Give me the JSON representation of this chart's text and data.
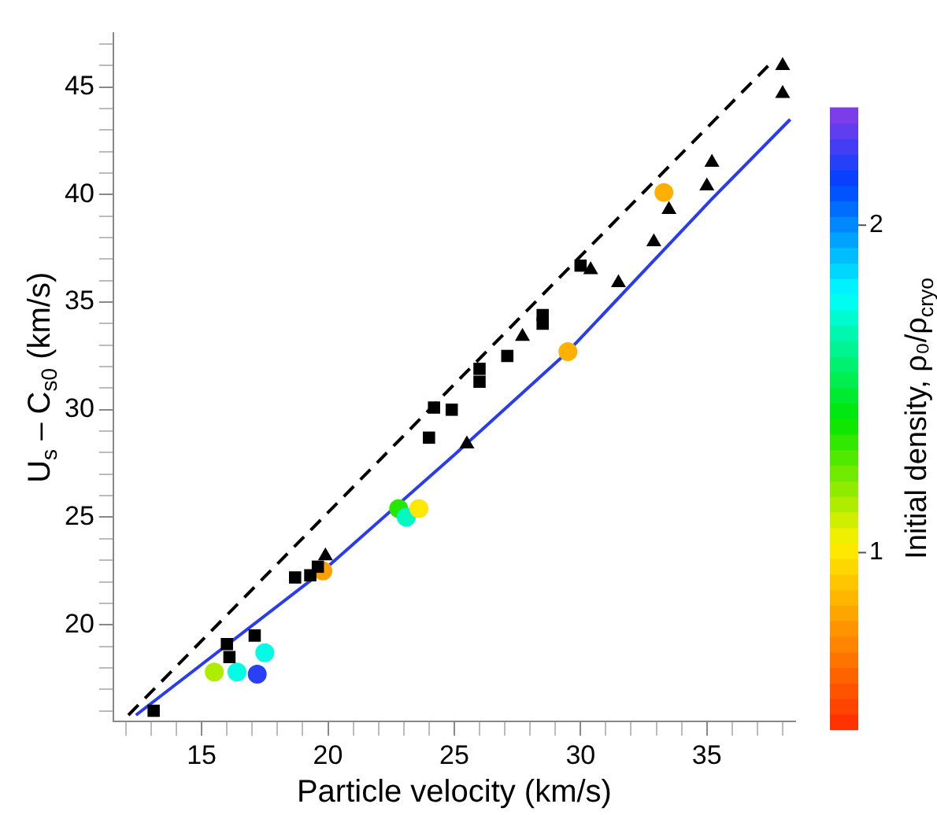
{
  "chart_data": {
    "type": "scatter",
    "xlabel": "Particle velocity (km/s)",
    "ylabel": "U$_{s}$ – C$_{s0}$ (km/s)",
    "clabel": "Initial density, ρ₀/ρ$_{cryo}$",
    "xlim": [
      11.5,
      38.5
    ],
    "ylim": [
      15.5,
      47.5
    ],
    "xticks": [
      {
        "value": 12,
        "label": null
      },
      {
        "value": 13,
        "label": null
      },
      {
        "value": 14,
        "label": null
      },
      15,
      {
        "value": 16,
        "label": null
      },
      {
        "value": 17,
        "label": null
      },
      {
        "value": 18,
        "label": null
      },
      {
        "value": 19,
        "label": null
      },
      20,
      {
        "value": 21,
        "label": null
      },
      {
        "value": 22,
        "label": null
      },
      {
        "value": 23,
        "label": null
      },
      {
        "value": 24,
        "label": null
      },
      25,
      {
        "value": 26,
        "label": null
      },
      {
        "value": 27,
        "label": null
      },
      {
        "value": 28,
        "label": null
      },
      {
        "value": 29,
        "label": null
      },
      30,
      {
        "value": 31,
        "label": null
      },
      {
        "value": 32,
        "label": null
      },
      {
        "value": 33,
        "label": null
      },
      {
        "value": 34,
        "label": null
      },
      35,
      {
        "value": 36,
        "label": null
      },
      {
        "value": 37,
        "label": null
      },
      {
        "value": 38,
        "label": null
      }
    ],
    "yticks": [
      {
        "value": 16,
        "label": null
      },
      {
        "value": 17,
        "label": null
      },
      {
        "value": 18,
        "label": null
      },
      {
        "value": 19,
        "label": null
      },
      20,
      {
        "value": 21,
        "label": null
      },
      {
        "value": 22,
        "label": null
      },
      {
        "value": 23,
        "label": null
      },
      {
        "value": 24,
        "label": null
      },
      25,
      {
        "value": 26,
        "label": null
      },
      {
        "value": 27,
        "label": null
      },
      {
        "value": 28,
        "label": null
      },
      {
        "value": 29,
        "label": null
      },
      30,
      {
        "value": 31,
        "label": null
      },
      {
        "value": 32,
        "label": null
      },
      {
        "value": 33,
        "label": null
      },
      {
        "value": 34,
        "label": null
      },
      35,
      {
        "value": 36,
        "label": null
      },
      {
        "value": 37,
        "label": null
      },
      {
        "value": 38,
        "label": null
      },
      {
        "value": 39,
        "label": null
      },
      40,
      {
        "value": 41,
        "label": null
      },
      {
        "value": 42,
        "label": null
      },
      {
        "value": 43,
        "label": null
      },
      {
        "value": 44,
        "label": null
      },
      45,
      {
        "value": 46,
        "label": null
      },
      {
        "value": 47,
        "label": null
      }
    ],
    "clim": [
      0.46,
      2.36
    ],
    "cticks": [
      1,
      2
    ],
    "grid": false,
    "legend": false,
    "series": [
      {
        "type": "line",
        "color": "#000000",
        "line_style": "dashed",
        "marker": "none",
        "x": [
          12.1,
          37.6
        ],
        "values": [
          15.8,
          46.2
        ]
      },
      {
        "type": "line",
        "color": "#2a3cf0",
        "line_style": "solid",
        "marker": "none",
        "x": [
          12.4,
          19.8,
          25.0,
          29.5,
          35.2,
          38.3
        ],
        "values": [
          15.8,
          22.5,
          27.9,
          32.7,
          39.8,
          43.5
        ]
      },
      {
        "type": "scatter",
        "color": "#000000",
        "marker": "square",
        "x": [
          13.1,
          16.0,
          16.1,
          17.1,
          18.7,
          19.3,
          19.6,
          24.0,
          24.2,
          24.9,
          26.0,
          26.0,
          27.1,
          28.5,
          28.5,
          30.0
        ],
        "values": [
          16.0,
          19.1,
          18.5,
          19.5,
          22.2,
          22.3,
          22.7,
          28.7,
          30.1,
          30.0,
          31.3,
          31.9,
          32.5,
          34.4,
          34.0,
          36.7
        ]
      },
      {
        "type": "scatter",
        "color": "#000000",
        "marker": "triangle",
        "x": [
          19.9,
          25.5,
          27.7,
          30.4,
          31.5,
          32.9,
          33.5,
          35.0,
          35.2,
          38.0,
          38.0
        ],
        "values": [
          23.2,
          28.4,
          33.4,
          36.5,
          35.9,
          37.8,
          39.3,
          40.4,
          41.5,
          46.0,
          44.7
        ]
      },
      {
        "type": "scatter",
        "marker": "circle",
        "x": [
          15.5,
          16.4,
          17.2,
          17.5,
          19.8,
          22.8,
          23.1,
          23.6,
          29.5,
          33.3
        ],
        "values": [
          17.8,
          17.8,
          17.7,
          18.7,
          22.5,
          25.4,
          25.0,
          25.4,
          32.7,
          40.1
        ],
        "cvalues": [
          1.15,
          1.75,
          2.2,
          1.75,
          0.8,
          1.35,
          1.7,
          1.0,
          0.85,
          0.85
        ],
        "colors": [
          "#aeed00",
          "#00fce4",
          "#2a3ff8",
          "#00fce4",
          "#ffa000",
          "#22e800",
          "#00f9c3",
          "#ffe900",
          "#ffb000",
          "#ffb000"
        ]
      }
    ]
  }
}
